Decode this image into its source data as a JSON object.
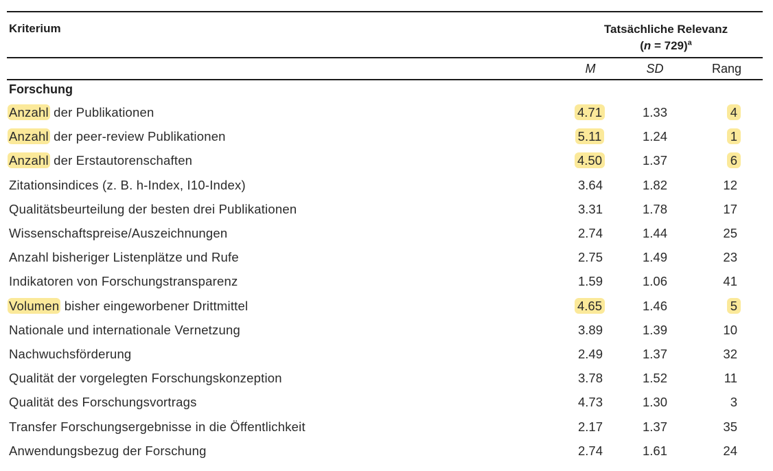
{
  "header": {
    "criterion": "Kriterium",
    "group_title": "Tatsächliche Relevanz",
    "n_open": "(",
    "n_var": "n",
    "n_value": " = 729)",
    "n_sup": "a",
    "col_m": "M",
    "col_sd": "SD",
    "col_rank": "Rang"
  },
  "section": "Forschung",
  "rows": [
    {
      "lead": "Anzahl",
      "rest": " der Publikationen",
      "m": "4.71",
      "sd": "1.33",
      "rank": "4",
      "highlight": true
    },
    {
      "lead": "Anzahl",
      "rest": " der peer-review Publikationen",
      "m": "5.11",
      "sd": "1.24",
      "rank": "1",
      "highlight": true
    },
    {
      "lead": "Anzahl",
      "rest": " der Erstautorenschaften",
      "m": "4.50",
      "sd": "1.37",
      "rank": "6",
      "highlight": true
    },
    {
      "lead": "",
      "rest": "Zitationsindices (z. B. h-Index, I10-Index)",
      "m": "3.64",
      "sd": "1.82",
      "rank": "12",
      "highlight": false
    },
    {
      "lead": "",
      "rest": "Qualitätsbeurteilung der besten drei Publikationen",
      "m": "3.31",
      "sd": "1.78",
      "rank": "17",
      "highlight": false
    },
    {
      "lead": "",
      "rest": "Wissenschaftspreise/Auszeichnungen",
      "m": "2.74",
      "sd": "1.44",
      "rank": "25",
      "highlight": false
    },
    {
      "lead": "",
      "rest": "Anzahl bisheriger Listenplätze und Rufe",
      "m": "2.75",
      "sd": "1.49",
      "rank": "23",
      "highlight": false
    },
    {
      "lead": "",
      "rest": "Indikatoren von Forschungstransparenz",
      "m": "1.59",
      "sd": "1.06",
      "rank": "41",
      "highlight": false
    },
    {
      "lead": "Volumen",
      "rest": " bisher eingeworbener Drittmittel",
      "m": "4.65",
      "sd": "1.46",
      "rank": "5",
      "highlight": true
    },
    {
      "lead": "",
      "rest": "Nationale und internationale Vernetzung",
      "m": "3.89",
      "sd": "1.39",
      "rank": "10",
      "highlight": false
    },
    {
      "lead": "",
      "rest": "Nachwuchsförderung",
      "m": "2.49",
      "sd": "1.37",
      "rank": "32",
      "highlight": false
    },
    {
      "lead": "",
      "rest": "Qualität der vorgelegten Forschungskonzeption",
      "m": "3.78",
      "sd": "1.52",
      "rank": "11",
      "highlight": false
    },
    {
      "lead": "",
      "rest": "Qualität des Forschungsvortrags",
      "m": "4.73",
      "sd": "1.30",
      "rank": "3",
      "highlight": false
    },
    {
      "lead": "",
      "rest": "Transfer Forschungsergebnisse in die Öffentlichkeit",
      "m": "2.17",
      "sd": "1.37",
      "rank": "35",
      "highlight": false
    },
    {
      "lead": "",
      "rest": "Anwendungsbezug der Forschung",
      "m": "2.74",
      "sd": "1.61",
      "rank": "24",
      "highlight": false
    }
  ],
  "colors": {
    "highlight": "#fbe99a",
    "rule": "#1a1a1a",
    "text": "#2a2a2a"
  }
}
